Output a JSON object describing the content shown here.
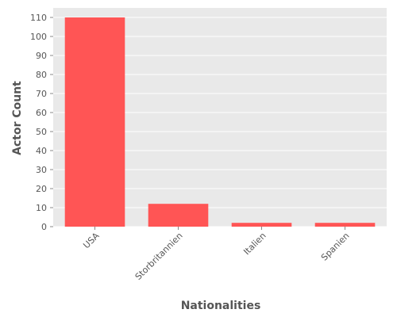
{
  "chart_data": {
    "type": "bar",
    "title": "",
    "xlabel": "Nationalities",
    "ylabel": "Actor Count",
    "categories": [
      "USA",
      "Storbritannien",
      "Italien",
      "Spanien"
    ],
    "values": [
      110,
      12,
      2,
      2
    ],
    "ylim": [
      0,
      115
    ],
    "yticks": [
      0,
      10,
      20,
      30,
      40,
      50,
      60,
      70,
      80,
      90,
      100,
      110
    ],
    "grid": true,
    "legend": "none",
    "colors": {
      "bar": "#ff5555",
      "plot_background": "#e9e9e9",
      "grid": "#ffffff",
      "text": "#555555"
    }
  }
}
